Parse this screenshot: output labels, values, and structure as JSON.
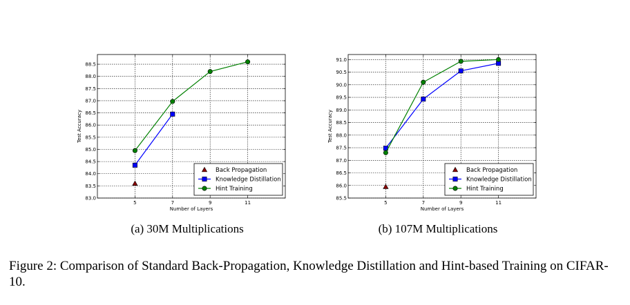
{
  "chart_data": [
    {
      "type": "line",
      "subcaption": "(a)  30M Multiplications",
      "xlabel": "Number of Layers",
      "ylabel": "Test Accuracy",
      "xlim": [
        3,
        13
      ],
      "ylim": [
        83.0,
        88.9
      ],
      "xticks": [
        5,
        7,
        9,
        11
      ],
      "yticks": [
        83.0,
        83.5,
        84.0,
        84.5,
        85.0,
        85.5,
        86.0,
        86.5,
        87.0,
        87.5,
        88.0,
        88.5
      ],
      "grid": true,
      "legend_position": "lower-right",
      "series": [
        {
          "name": "Back Propagation",
          "color": "#8b0000",
          "marker": "triangle",
          "line": false,
          "x": [
            5
          ],
          "y": [
            83.6
          ]
        },
        {
          "name": "Knowledge Distillation",
          "color": "#0000ff",
          "marker": "square",
          "line": true,
          "x": [
            5,
            7
          ],
          "y": [
            84.35,
            86.45
          ]
        },
        {
          "name": "Hint Training",
          "color": "#008000",
          "marker": "circle",
          "line": true,
          "x": [
            5,
            7,
            9,
            11
          ],
          "y": [
            84.95,
            86.97,
            88.2,
            88.6
          ]
        }
      ]
    },
    {
      "type": "line",
      "subcaption": "(b)  107M Multiplications",
      "xlabel": "Number of Layers",
      "ylabel": "Test Accuracy",
      "xlim": [
        3,
        13
      ],
      "ylim": [
        85.5,
        91.2
      ],
      "xticks": [
        5,
        7,
        9,
        11
      ],
      "yticks": [
        85.5,
        86.0,
        86.5,
        87.0,
        87.5,
        88.0,
        88.5,
        89.0,
        89.5,
        90.0,
        90.5,
        91.0
      ],
      "grid": true,
      "legend_position": "lower-right",
      "series": [
        {
          "name": "Back Propagation",
          "color": "#8b0000",
          "marker": "triangle",
          "line": false,
          "x": [
            5
          ],
          "y": [
            85.95
          ]
        },
        {
          "name": "Knowledge Distillation",
          "color": "#0000ff",
          "marker": "square",
          "line": true,
          "x": [
            5,
            7,
            9,
            11
          ],
          "y": [
            87.48,
            89.43,
            90.55,
            90.85
          ]
        },
        {
          "name": "Hint Training",
          "color": "#008000",
          "marker": "circle",
          "line": true,
          "x": [
            5,
            7,
            9,
            11
          ],
          "y": [
            87.3,
            90.1,
            90.93,
            91.0
          ]
        }
      ]
    }
  ],
  "caption": "Figure 2: Comparison of Standard Back-Propagation, Knowledge Distillation and Hint-based Training on CIFAR-10."
}
